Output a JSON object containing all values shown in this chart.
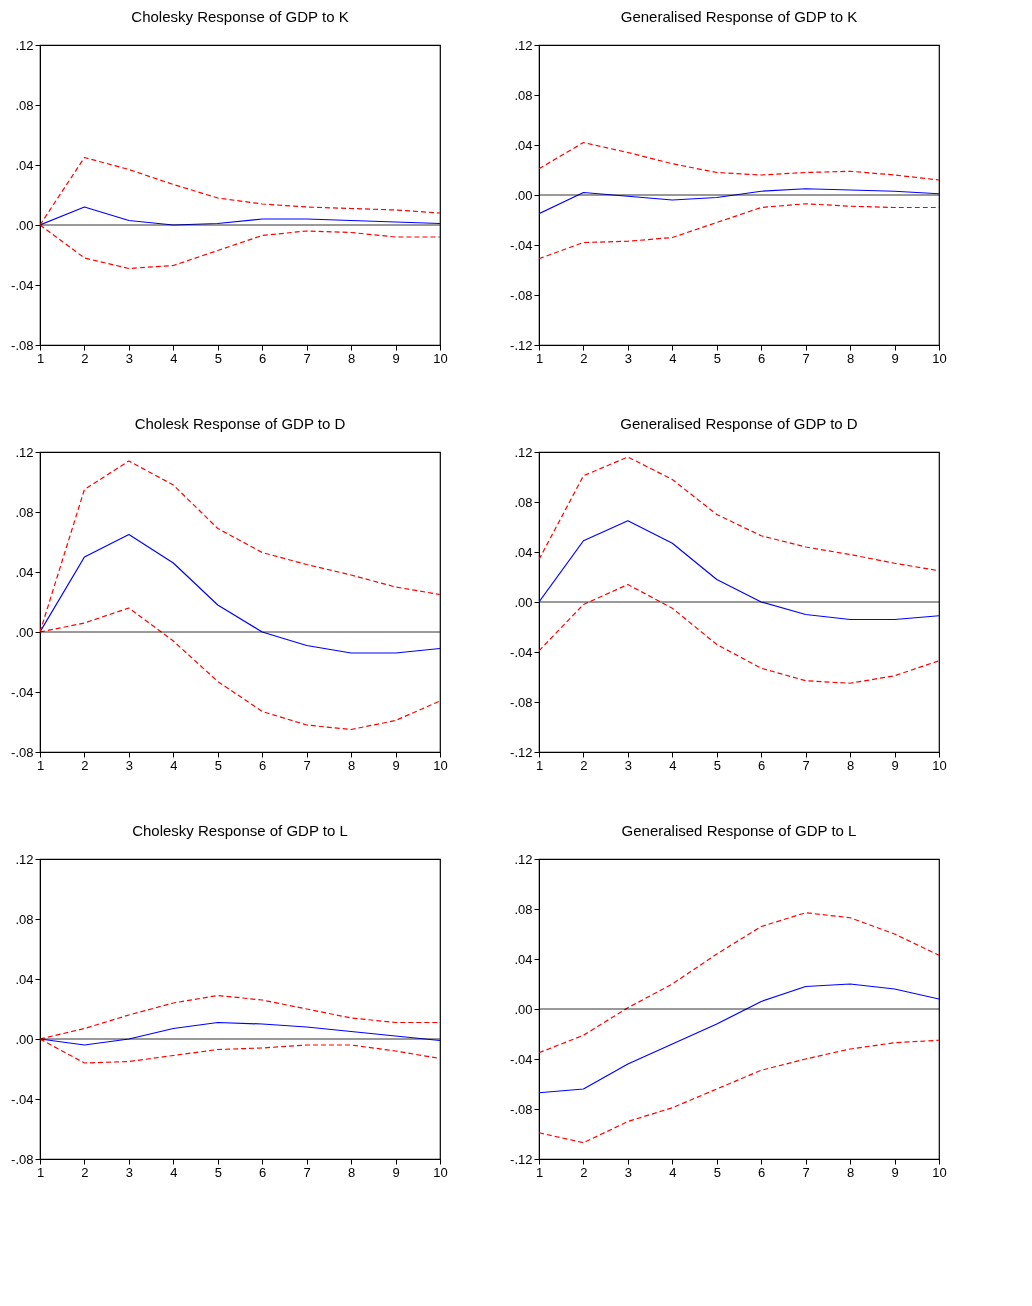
{
  "chart_data": [
    {
      "type": "line",
      "title": "Cholesky Response of GDP to K",
      "x": [
        1,
        2,
        3,
        4,
        5,
        6,
        7,
        8,
        9,
        10
      ],
      "xlim": [
        1,
        10
      ],
      "xticks": [
        1,
        2,
        3,
        4,
        5,
        6,
        7,
        8,
        9,
        10
      ],
      "ylim": [
        -0.08,
        0.12
      ],
      "yticks": [
        {
          "value": -0.08,
          "label": "-.08"
        },
        {
          "value": -0.04,
          "label": "-.04"
        },
        {
          "value": 0,
          "label": ".00"
        },
        {
          "value": 0.04,
          "label": ".04"
        },
        {
          "value": 0.08,
          "label": ".08"
        },
        {
          "value": 0.12,
          "label": ".12"
        }
      ],
      "ref_lines": [
        {
          "axis": "y",
          "value": 0,
          "color": "#000000"
        }
      ],
      "series": [
        {
          "color": "#0000ff",
          "line_style": "solid",
          "values": [
            0,
            0.012,
            0.003,
            0,
            0.001,
            0.004,
            0.004,
            0.003,
            0.002,
            0.001
          ]
        },
        {
          "color": "#ff0000",
          "line_style": "dashed",
          "values": [
            0,
            0.045,
            0.037,
            0.027,
            0.018,
            0.014,
            0.012,
            0.011,
            0.01,
            0.008
          ]
        },
        {
          "color": "#ff0000",
          "line_style": "dashed",
          "values": [
            0,
            -0.022,
            -0.029,
            -0.027,
            -0.017,
            -0.007,
            -0.004,
            -0.005,
            -0.008,
            -0.008
          ]
        }
      ]
    },
    {
      "type": "line",
      "title": "Generalised Response of GDP to K",
      "x": [
        1,
        2,
        3,
        4,
        5,
        6,
        7,
        8,
        9,
        10
      ],
      "xlim": [
        1,
        10
      ],
      "xticks": [
        1,
        2,
        3,
        4,
        5,
        6,
        7,
        8,
        9,
        10
      ],
      "ylim": [
        -0.12,
        0.12
      ],
      "yticks": [
        {
          "value": -0.12,
          "label": "-.12"
        },
        {
          "value": -0.08,
          "label": "-.08"
        },
        {
          "value": -0.04,
          "label": "-.04"
        },
        {
          "value": 0,
          "label": ".00"
        },
        {
          "value": 0.04,
          "label": ".04"
        },
        {
          "value": 0.08,
          "label": ".08"
        },
        {
          "value": 0.12,
          "label": ".12"
        }
      ],
      "ref_lines": [
        {
          "axis": "y",
          "value": 0,
          "color": "#000000"
        }
      ],
      "series": [
        {
          "color": "#0000ff",
          "line_style": "solid",
          "values": [
            -0.015,
            0.002,
            -0.001,
            -0.004,
            -0.002,
            0.003,
            0.005,
            0.004,
            0.003,
            0.001
          ]
        },
        {
          "color": "#ff0000",
          "line_style": "dashed",
          "values": [
            0.021,
            0.042,
            0.034,
            0.025,
            0.018,
            0.016,
            0.018,
            0.019,
            0.016,
            0.012
          ]
        },
        {
          "color": "#ff0000",
          "line_style": "dashed",
          "values": [
            -0.051,
            -0.038,
            -0.037,
            -0.034,
            -0.022,
            -0.01,
            -0.007,
            -0.009,
            -0.01,
            -0.01
          ]
        }
      ]
    },
    {
      "type": "line",
      "title": "Cholesk Response of GDP to D",
      "x": [
        1,
        2,
        3,
        4,
        5,
        6,
        7,
        8,
        9,
        10
      ],
      "xlim": [
        1,
        10
      ],
      "xticks": [
        1,
        2,
        3,
        4,
        5,
        6,
        7,
        8,
        9,
        10
      ],
      "ylim": [
        -0.08,
        0.12
      ],
      "yticks": [
        {
          "value": -0.08,
          "label": "-.08"
        },
        {
          "value": -0.04,
          "label": "-.04"
        },
        {
          "value": 0,
          "label": ".00"
        },
        {
          "value": 0.04,
          "label": ".04"
        },
        {
          "value": 0.08,
          "label": ".08"
        },
        {
          "value": 0.12,
          "label": ".12"
        }
      ],
      "ref_lines": [
        {
          "axis": "y",
          "value": 0,
          "color": "#000000"
        }
      ],
      "series": [
        {
          "color": "#0000ff",
          "line_style": "solid",
          "values": [
            0,
            0.05,
            0.065,
            0.046,
            0.018,
            0,
            -0.009,
            -0.014,
            -0.014,
            -0.011
          ]
        },
        {
          "color": "#ff0000",
          "line_style": "dashed",
          "values": [
            0,
            0.095,
            0.114,
            0.098,
            0.069,
            0.053,
            0.045,
            0.038,
            0.03,
            0.025
          ]
        },
        {
          "color": "#ff0000",
          "line_style": "dashed",
          "values": [
            0,
            0.006,
            0.016,
            -0.006,
            -0.033,
            -0.053,
            -0.062,
            -0.065,
            -0.059,
            -0.046
          ]
        }
      ]
    },
    {
      "type": "line",
      "title": "Generalised Response of GDP to D",
      "x": [
        1,
        2,
        3,
        4,
        5,
        6,
        7,
        8,
        9,
        10
      ],
      "xlim": [
        1,
        10
      ],
      "xticks": [
        1,
        2,
        3,
        4,
        5,
        6,
        7,
        8,
        9,
        10
      ],
      "ylim": [
        -0.12,
        0.12
      ],
      "yticks": [
        {
          "value": -0.12,
          "label": "-.12"
        },
        {
          "value": -0.08,
          "label": "-.08"
        },
        {
          "value": -0.04,
          "label": "-.04"
        },
        {
          "value": 0,
          "label": ".00"
        },
        {
          "value": 0.04,
          "label": ".04"
        },
        {
          "value": 0.08,
          "label": ".08"
        },
        {
          "value": 0.12,
          "label": ".12"
        }
      ],
      "ref_lines": [
        {
          "axis": "y",
          "value": 0,
          "color": "#000000"
        }
      ],
      "series": [
        {
          "color": "#0000ff",
          "line_style": "solid",
          "values": [
            0,
            0.049,
            0.065,
            0.047,
            0.018,
            0,
            -0.01,
            -0.014,
            -0.014,
            -0.011
          ]
        },
        {
          "color": "#ff0000",
          "line_style": "dashed",
          "values": [
            0.034,
            0.101,
            0.116,
            0.098,
            0.07,
            0.053,
            0.044,
            0.038,
            0.031,
            0.025
          ]
        },
        {
          "color": "#ff0000",
          "line_style": "dashed",
          "values": [
            -0.039,
            -0.002,
            0.014,
            -0.005,
            -0.034,
            -0.053,
            -0.063,
            -0.065,
            -0.059,
            -0.047
          ]
        }
      ]
    },
    {
      "type": "line",
      "title": "Cholesky Response of GDP to L",
      "x": [
        1,
        2,
        3,
        4,
        5,
        6,
        7,
        8,
        9,
        10
      ],
      "xlim": [
        1,
        10
      ],
      "xticks": [
        1,
        2,
        3,
        4,
        5,
        6,
        7,
        8,
        9,
        10
      ],
      "ylim": [
        -0.08,
        0.12
      ],
      "yticks": [
        {
          "value": -0.08,
          "label": "-.08"
        },
        {
          "value": -0.04,
          "label": "-.04"
        },
        {
          "value": 0,
          "label": ".00"
        },
        {
          "value": 0.04,
          "label": ".04"
        },
        {
          "value": 0.08,
          "label": ".08"
        },
        {
          "value": 0.12,
          "label": ".12"
        }
      ],
      "ref_lines": [
        {
          "axis": "y",
          "value": 0,
          "color": "#000000"
        }
      ],
      "series": [
        {
          "color": "#0000ff",
          "line_style": "solid",
          "values": [
            0,
            -0.004,
            0,
            0.007,
            0.011,
            0.01,
            0.008,
            0.005,
            0.002,
            -0.001
          ]
        },
        {
          "color": "#ff0000",
          "line_style": "dashed",
          "values": [
            0,
            0.007,
            0.016,
            0.024,
            0.029,
            0.026,
            0.02,
            0.014,
            0.011,
            0.011
          ]
        },
        {
          "color": "#ff0000",
          "line_style": "dashed",
          "values": [
            0,
            -0.016,
            -0.015,
            -0.011,
            -0.007,
            -0.006,
            -0.004,
            -0.004,
            -0.008,
            -0.013
          ]
        }
      ]
    },
    {
      "type": "line",
      "title": "Generalised Response of GDP to L",
      "x": [
        1,
        2,
        3,
        4,
        5,
        6,
        7,
        8,
        9,
        10
      ],
      "xlim": [
        1,
        10
      ],
      "xticks": [
        1,
        2,
        3,
        4,
        5,
        6,
        7,
        8,
        9,
        10
      ],
      "ylim": [
        -0.12,
        0.12
      ],
      "yticks": [
        {
          "value": -0.12,
          "label": "-.12"
        },
        {
          "value": -0.08,
          "label": "-.08"
        },
        {
          "value": -0.04,
          "label": "-.04"
        },
        {
          "value": 0,
          "label": ".00"
        },
        {
          "value": 0.04,
          "label": ".04"
        },
        {
          "value": 0.08,
          "label": ".08"
        },
        {
          "value": 0.12,
          "label": ".12"
        }
      ],
      "ref_lines": [
        {
          "axis": "y",
          "value": 0,
          "color": "#000000"
        }
      ],
      "series": [
        {
          "color": "#0000ff",
          "line_style": "solid",
          "values": [
            -0.067,
            -0.064,
            -0.044,
            -0.028,
            -0.012,
            0.006,
            0.018,
            0.02,
            0.016,
            0.008
          ]
        },
        {
          "color": "#ff0000",
          "line_style": "dashed",
          "values": [
            -0.035,
            -0.021,
            0.001,
            0.02,
            0.044,
            0.066,
            0.077,
            0.073,
            0.06,
            0.043
          ]
        },
        {
          "color": "#ff0000",
          "line_style": "dashed",
          "values": [
            -0.099,
            -0.107,
            -0.09,
            -0.079,
            -0.064,
            -0.049,
            -0.04,
            -0.032,
            -0.027,
            -0.025
          ]
        }
      ]
    }
  ]
}
